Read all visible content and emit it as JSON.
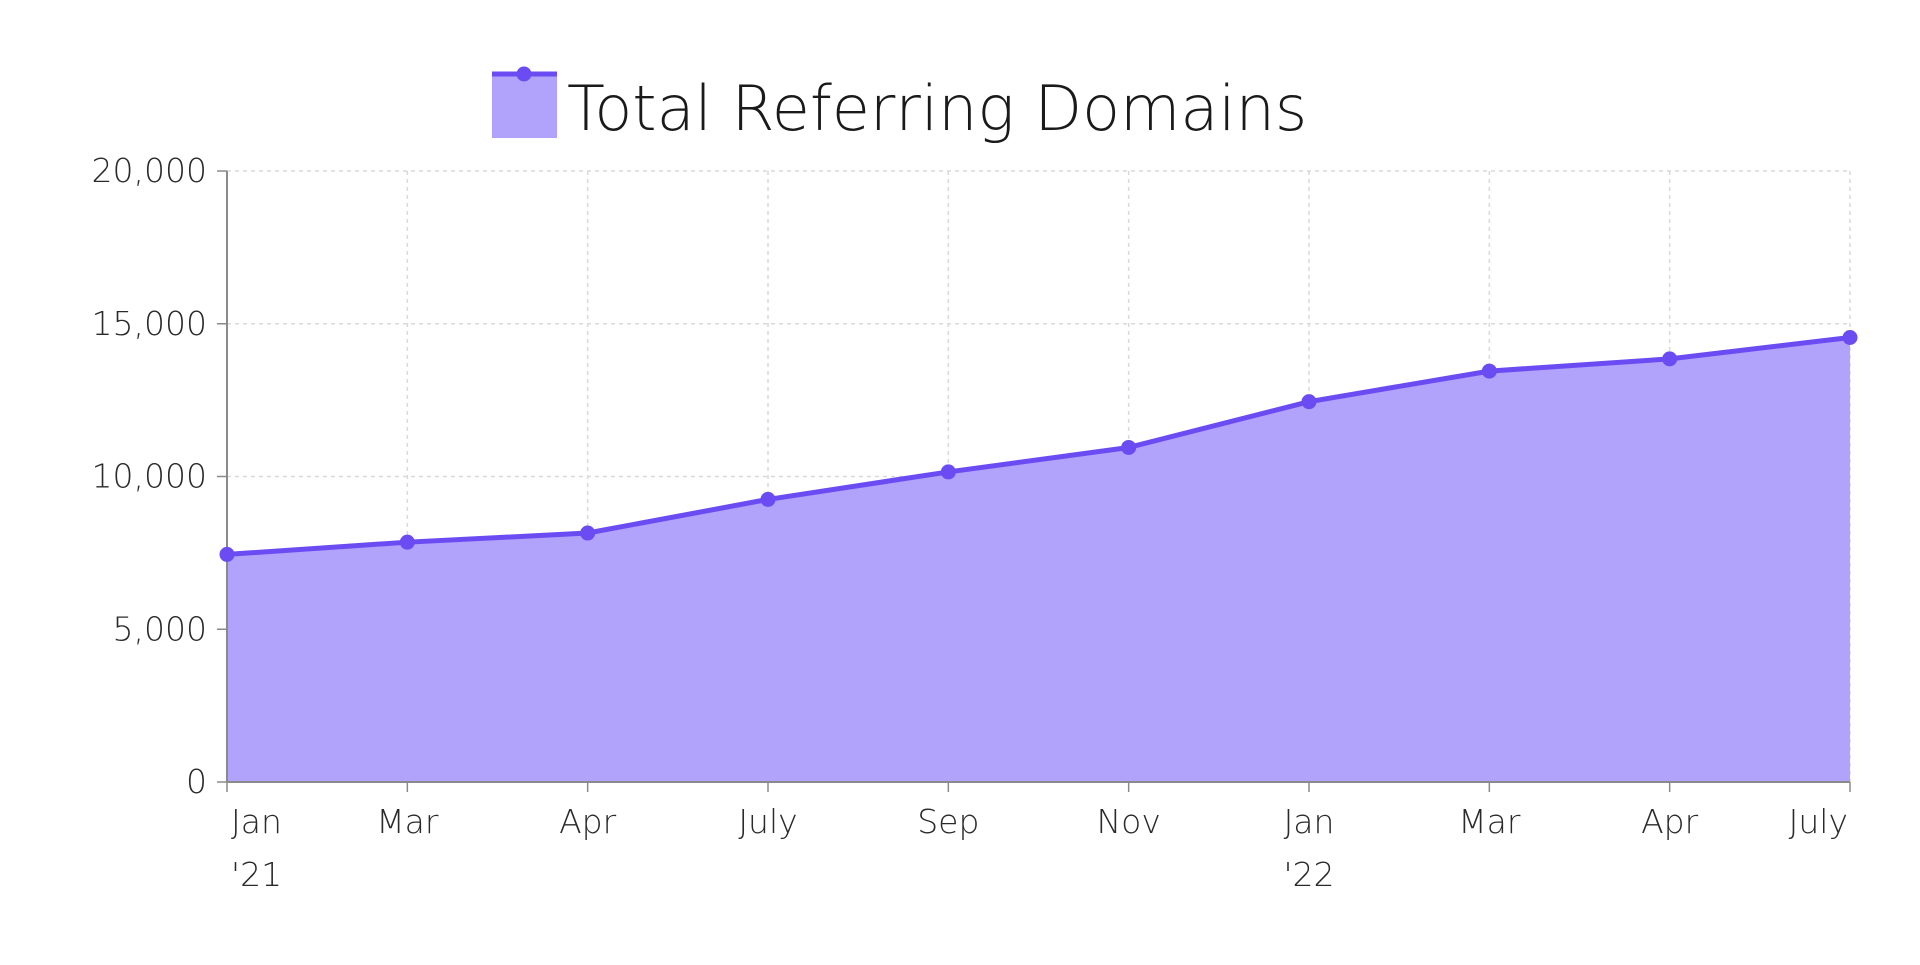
{
  "colors": {
    "line": "#6a4cf2",
    "fill": "#b1a2fb",
    "grid": "#d9d9d9",
    "axis": "#8a8a8a",
    "text": "#2a2a2a"
  },
  "chart_data": {
    "type": "area",
    "title": "",
    "xlabel": "",
    "ylabel": "",
    "categories": [
      "Jan '21",
      "Mar",
      "Apr",
      "July",
      "Sep",
      "Nov",
      "Jan '22",
      "Mar",
      "Apr",
      "July"
    ],
    "x_tick_labels": [
      {
        "line1": "Jan",
        "line2": "'21"
      },
      {
        "line1": "Mar",
        "line2": ""
      },
      {
        "line1": "Apr",
        "line2": ""
      },
      {
        "line1": "July",
        "line2": ""
      },
      {
        "line1": "Sep",
        "line2": ""
      },
      {
        "line1": "Nov",
        "line2": ""
      },
      {
        "line1": "Jan",
        "line2": "'22"
      },
      {
        "line1": "Mar",
        "line2": ""
      },
      {
        "line1": "Apr",
        "line2": ""
      },
      {
        "line1": "July",
        "line2": ""
      }
    ],
    "series": [
      {
        "name": "Total Referring Domains",
        "values": [
          7450,
          7850,
          8150,
          9250,
          10150,
          10950,
          12450,
          13450,
          13850,
          14550
        ]
      }
    ],
    "ylim": [
      0,
      20000
    ],
    "y_ticks": [
      0,
      5000,
      10000,
      15000,
      20000
    ],
    "y_tick_labels": [
      "0",
      "5,000",
      "10,000",
      "15,000",
      "20,000"
    ],
    "grid": true,
    "legend_position": "top-center"
  }
}
